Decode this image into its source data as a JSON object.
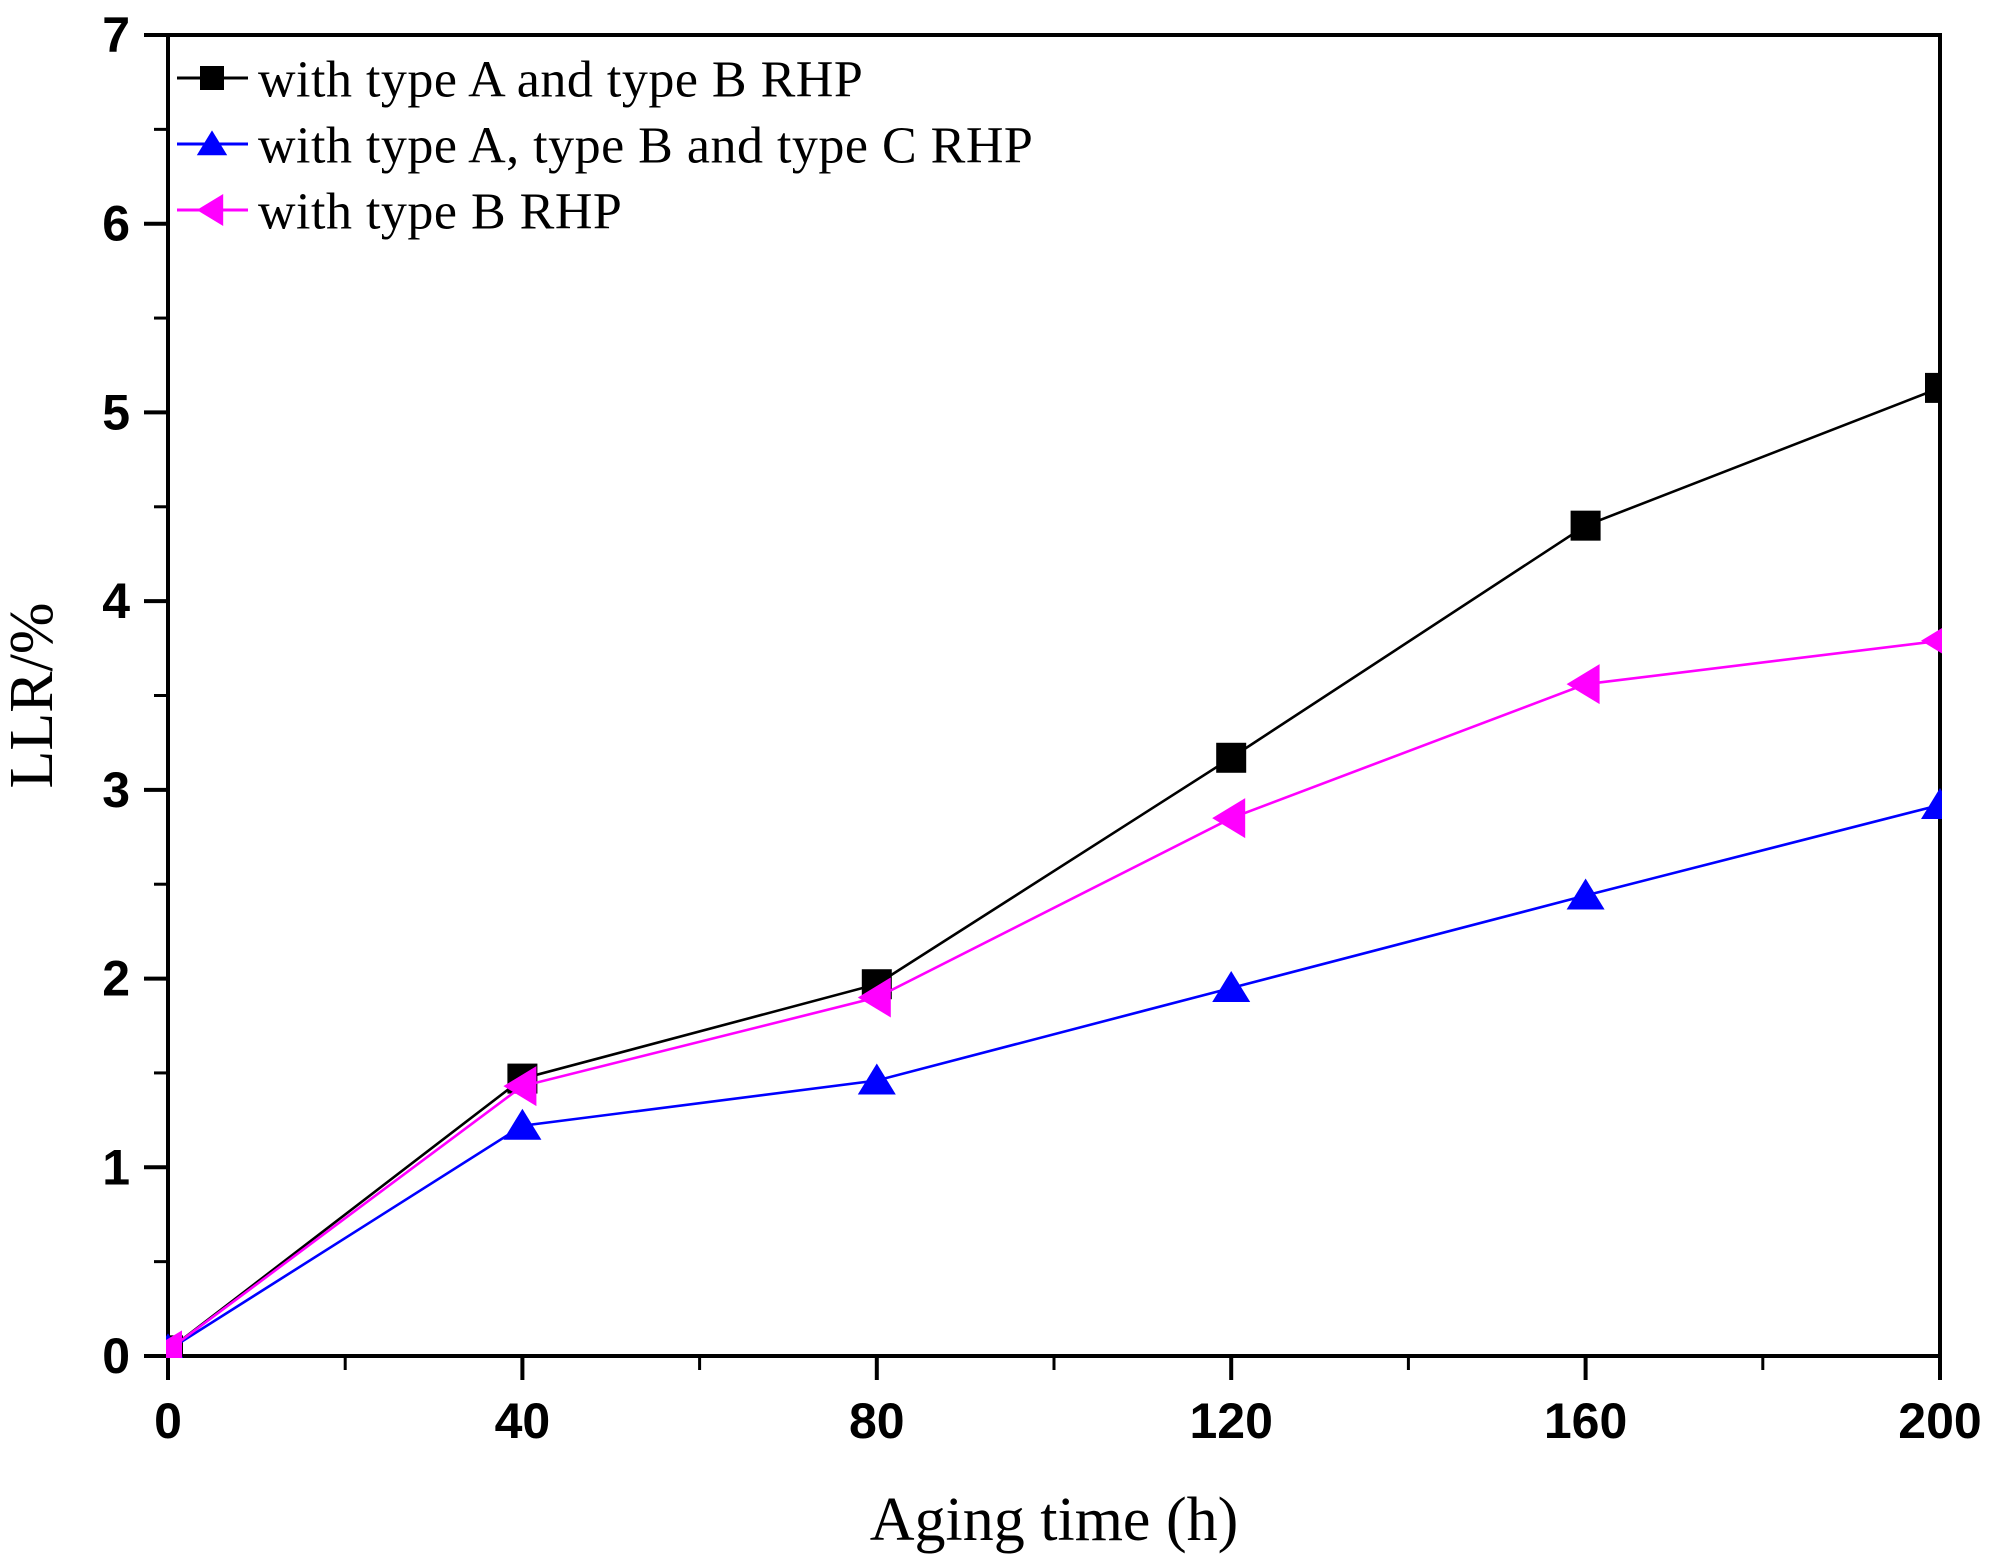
{
  "chart_data": {
    "type": "line",
    "title": "",
    "xlabel": "Aging time (h)",
    "ylabel": "LLR/%",
    "xlim": [
      0,
      200
    ],
    "ylim": [
      0,
      7
    ],
    "x_major_ticks": [
      0,
      40,
      80,
      120,
      160,
      200
    ],
    "x_minor_ticks": [
      20,
      60,
      100,
      140,
      180
    ],
    "y_major_ticks": [
      0,
      1,
      2,
      3,
      4,
      5,
      6,
      7
    ],
    "y_minor_ticks": [
      0.5,
      1.5,
      2.5,
      3.5,
      4.5,
      5.5,
      6.5
    ],
    "grid": false,
    "legend_position": "top-left-inside",
    "x": [
      0,
      40,
      80,
      120,
      160,
      200
    ],
    "series": [
      {
        "name": "with type A and type B RHP",
        "color": "#000000",
        "marker": "square",
        "values": [
          0.03,
          1.47,
          1.97,
          3.17,
          4.4,
          5.13
        ]
      },
      {
        "name": "with type A, type B and type C RHP",
        "color": "#0000ff",
        "marker": "triangle-up",
        "values": [
          0.03,
          1.22,
          1.46,
          1.95,
          2.44,
          2.92
        ]
      },
      {
        "name": "with type B RHP",
        "color": "#ff00ff",
        "marker": "triangle-left",
        "values": [
          0.03,
          1.43,
          1.9,
          2.85,
          3.56,
          3.79
        ]
      }
    ]
  }
}
